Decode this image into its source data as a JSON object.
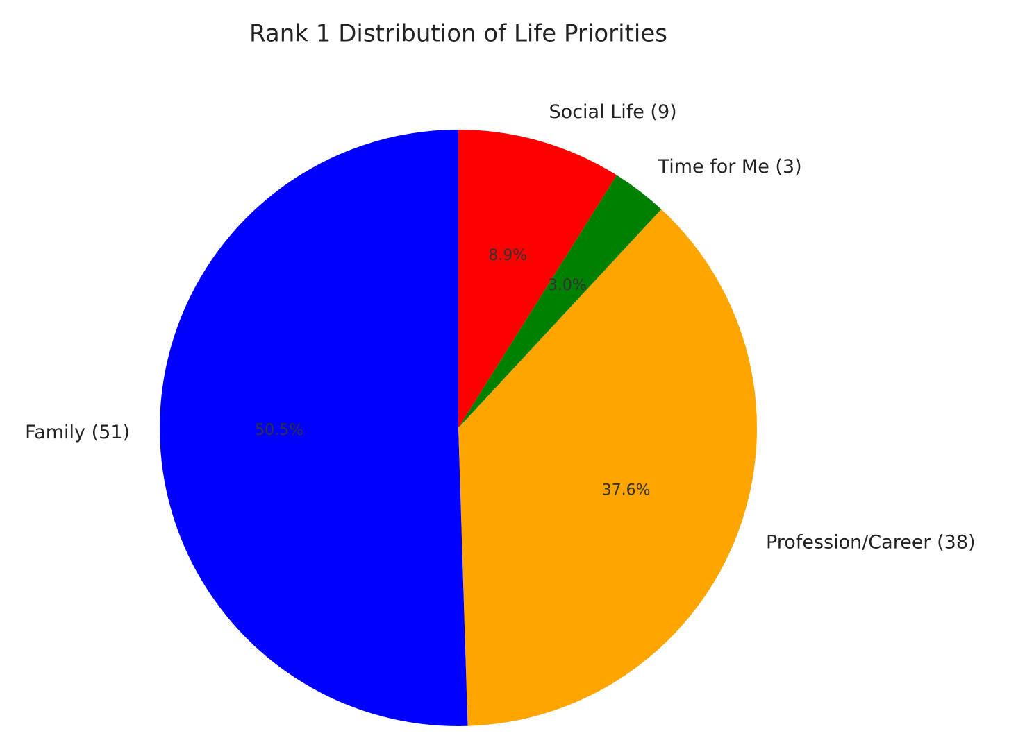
{
  "chart_data": {
    "type": "pie",
    "title": "Rank 1 Distribution of Life Priorities",
    "categories": [
      "Social Life (9)",
      "Time for Me (3)",
      "Profession/Career (38)",
      "Family (51)"
    ],
    "values": [
      8.9,
      3.0,
      37.6,
      50.5
    ],
    "value_labels": [
      "8.9%",
      "3.0%",
      "37.6%",
      "50.5%"
    ],
    "colors": [
      "#ff0000",
      "#008000",
      "#ffa500",
      "#0000ff"
    ],
    "start": "top",
    "direction": "clockwise"
  }
}
